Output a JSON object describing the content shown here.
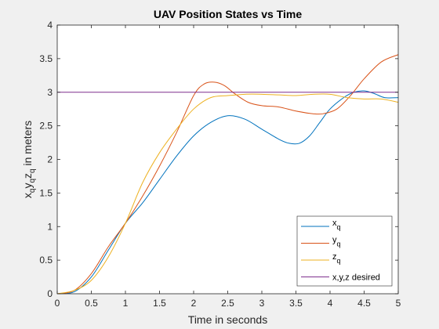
{
  "chart_data": {
    "type": "line",
    "title": "UAV Position States vs Time",
    "xlabel": "Time in seconds",
    "ylabel_parts": [
      "x",
      "q",
      "y",
      "q",
      "z",
      "q",
      " in meters"
    ],
    "xlim": [
      0,
      5
    ],
    "ylim": [
      0,
      4
    ],
    "xticks": [
      0,
      0.5,
      1,
      1.5,
      2,
      2.5,
      3,
      3.5,
      4,
      4.5,
      5
    ],
    "xtick_labels": [
      "0",
      "0.5",
      "1",
      "1.5",
      "2",
      "2.5",
      "3",
      "3.5",
      "4",
      "4.5",
      "5"
    ],
    "yticks": [
      0,
      0.5,
      1,
      1.5,
      2,
      2.5,
      3,
      3.5,
      4
    ],
    "ytick_labels": [
      "0",
      "0.5",
      "1",
      "1.5",
      "2",
      "2.5",
      "3",
      "3.5",
      "4"
    ],
    "grid": false,
    "legend_position": "bottom-right",
    "series": [
      {
        "name": "x",
        "subscript": "q",
        "color": "#0072BD",
        "x": [
          0,
          0.25,
          0.5,
          0.75,
          1,
          1.25,
          1.5,
          1.75,
          2,
          2.25,
          2.5,
          2.75,
          3,
          3.25,
          3.4,
          3.55,
          3.7,
          3.85,
          4,
          4.2,
          4.35,
          4.5,
          4.65,
          4.8,
          5
        ],
        "y": [
          0,
          0.03,
          0.25,
          0.65,
          1.05,
          1.35,
          1.7,
          2.05,
          2.35,
          2.55,
          2.65,
          2.6,
          2.45,
          2.3,
          2.24,
          2.24,
          2.35,
          2.55,
          2.75,
          2.92,
          3.0,
          3.02,
          2.98,
          2.92,
          2.92
        ]
      },
      {
        "name": "y",
        "subscript": "q",
        "color": "#D95319",
        "x": [
          0,
          0.25,
          0.5,
          0.75,
          1,
          1.25,
          1.5,
          1.75,
          2,
          2.15,
          2.3,
          2.45,
          2.6,
          2.8,
          3,
          3.25,
          3.5,
          3.75,
          3.9,
          4.1,
          4.3,
          4.5,
          4.75,
          5
        ],
        "y": [
          0,
          0.05,
          0.3,
          0.7,
          1.05,
          1.45,
          1.9,
          2.4,
          2.95,
          3.12,
          3.15,
          3.1,
          2.98,
          2.85,
          2.8,
          2.78,
          2.72,
          2.68,
          2.68,
          2.75,
          2.95,
          3.2,
          3.45,
          3.56
        ]
      },
      {
        "name": "z",
        "subscript": "q",
        "color": "#EDB120",
        "x": [
          0,
          0.25,
          0.5,
          0.75,
          1,
          1.25,
          1.5,
          1.75,
          2,
          2.25,
          2.5,
          2.75,
          3,
          3.25,
          3.5,
          3.75,
          4,
          4.25,
          4.5,
          4.75,
          5
        ],
        "y": [
          0,
          0.05,
          0.2,
          0.55,
          1.05,
          1.65,
          2.1,
          2.45,
          2.75,
          2.92,
          2.95,
          2.97,
          2.97,
          2.96,
          2.95,
          2.97,
          2.97,
          2.92,
          2.9,
          2.9,
          2.85
        ]
      },
      {
        "name": "x,y,z desired",
        "subscript": "",
        "color": "#7E2F8E",
        "x": [
          0,
          5
        ],
        "y": [
          3,
          3
        ]
      }
    ]
  }
}
